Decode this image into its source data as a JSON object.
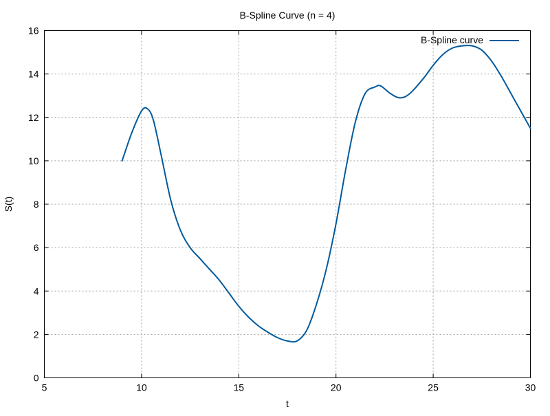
{
  "chart_data": {
    "type": "line",
    "title": "B-Spline Curve (n = 4)",
    "xlabel": "t",
    "ylabel": "S(t)",
    "xlim": [
      5,
      30
    ],
    "ylim": [
      0,
      16
    ],
    "x_ticks": [
      5,
      10,
      15,
      20,
      25,
      30
    ],
    "y_ticks": [
      0,
      2,
      4,
      6,
      8,
      10,
      12,
      14,
      16
    ],
    "grid": true,
    "legend_position": "top-right",
    "series": [
      {
        "name": "B-Spline curve",
        "color": "#005a9c",
        "x": [
          9.0,
          9.5,
          10.0,
          10.3,
          10.6,
          11.0,
          11.5,
          12.0,
          12.5,
          13.0,
          13.5,
          14.0,
          14.5,
          15.0,
          15.5,
          16.0,
          16.5,
          17.0,
          17.5,
          18.0,
          18.5,
          19.0,
          19.5,
          20.0,
          20.5,
          21.0,
          21.5,
          22.0,
          22.3,
          22.8,
          23.3,
          23.8,
          24.5,
          25.0,
          25.5,
          26.0,
          26.5,
          27.0,
          27.5,
          28.0,
          28.5,
          29.0,
          29.5,
          30.0
        ],
        "y": [
          10.0,
          11.3,
          12.3,
          12.4,
          11.9,
          10.3,
          8.2,
          6.8,
          6.0,
          5.5,
          5.0,
          4.5,
          3.9,
          3.3,
          2.8,
          2.4,
          2.1,
          1.85,
          1.7,
          1.7,
          2.2,
          3.4,
          5.0,
          7.1,
          9.6,
          11.8,
          13.1,
          13.4,
          13.45,
          13.1,
          12.9,
          13.1,
          13.8,
          14.4,
          14.9,
          15.2,
          15.3,
          15.3,
          15.1,
          14.6,
          13.9,
          13.1,
          12.3,
          11.5
        ]
      }
    ]
  }
}
